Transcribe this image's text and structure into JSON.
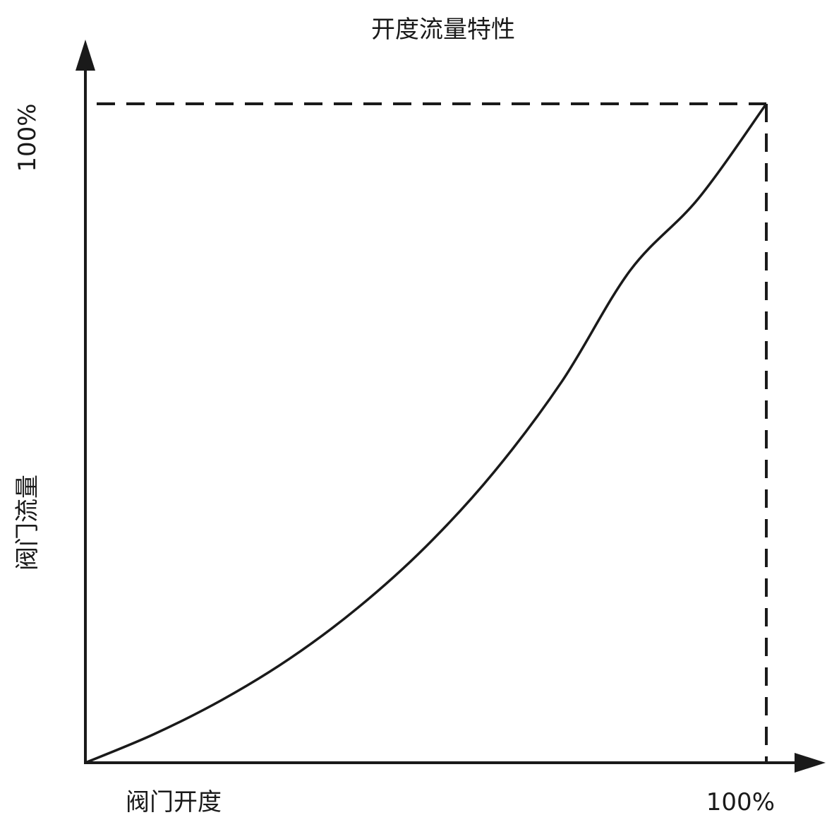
{
  "chart_data": {
    "type": "line",
    "title": "开度流量特性",
    "xlabel": "阀门开度",
    "ylabel": "阀门流量",
    "x_max_label": "100%",
    "y_max_label": "100%",
    "xlim": [
      0,
      100
    ],
    "ylim": [
      0,
      100
    ],
    "grid": false,
    "series": [
      {
        "x": [
          0,
          10,
          20,
          30,
          40,
          50,
          60,
          70,
          80,
          90,
          100
        ],
        "y": [
          0,
          4.3,
          9.5,
          15.8,
          23.5,
          32.8,
          44.1,
          57.9,
          74.7,
          85.6,
          100
        ]
      }
    ],
    "reference_lines": [
      {
        "type": "horizontal",
        "y": 100,
        "style": "dashed"
      },
      {
        "type": "vertical",
        "x": 100,
        "style": "dashed"
      }
    ]
  }
}
